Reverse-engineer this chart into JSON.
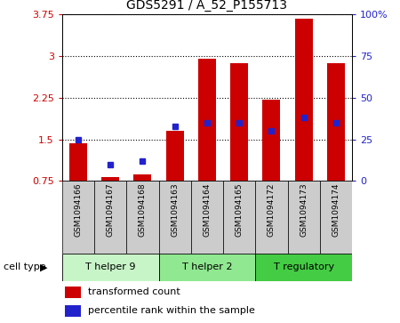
{
  "title": "GDS5291 / A_52_P155713",
  "samples": [
    "GSM1094166",
    "GSM1094167",
    "GSM1094168",
    "GSM1094163",
    "GSM1094164",
    "GSM1094165",
    "GSM1094172",
    "GSM1094173",
    "GSM1094174"
  ],
  "transformed_counts": [
    1.43,
    0.82,
    0.87,
    1.65,
    2.95,
    2.88,
    2.22,
    3.68,
    2.88
  ],
  "percentile_ranks": [
    25,
    10,
    12,
    33,
    35,
    35,
    30,
    38,
    35
  ],
  "cell_types": [
    {
      "label": "T helper 9",
      "start": 0,
      "end": 3,
      "color": "#c8f5c8"
    },
    {
      "label": "T helper 2",
      "start": 3,
      "end": 6,
      "color": "#90e890"
    },
    {
      "label": "T regulatory",
      "start": 6,
      "end": 9,
      "color": "#44cc44"
    }
  ],
  "ylim_left": [
    0.75,
    3.75
  ],
  "ylim_right": [
    0,
    100
  ],
  "yticks_left": [
    0.75,
    1.5,
    2.25,
    3.0,
    3.75
  ],
  "ytick_labels_left": [
    "0.75",
    "1.5",
    "2.25",
    "3",
    "3.75"
  ],
  "yticks_right": [
    0,
    25,
    50,
    75,
    100
  ],
  "ytick_labels_right": [
    "0",
    "25",
    "50",
    "75",
    "100%"
  ],
  "bar_color": "#cc0000",
  "dot_color": "#2222cc",
  "bar_width": 0.55,
  "legend_items": [
    "transformed count",
    "percentile rank within the sample"
  ],
  "cell_type_label": "cell type",
  "sample_bg_color": "#cccccc",
  "arrow_char": "▶"
}
